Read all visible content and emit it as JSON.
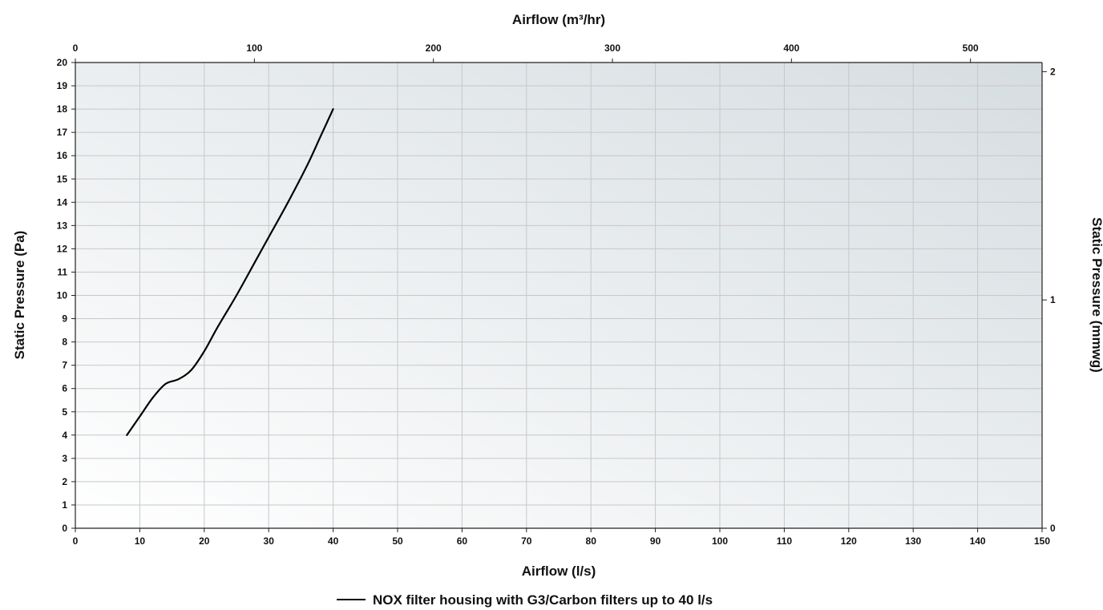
{
  "chart_data": {
    "type": "line",
    "title": "",
    "xlabel": "Airflow (l/s)",
    "ylabel": "Static Pressure (Pa)",
    "x2label": "Airflow (m³/hr)",
    "y2label": "Static Pressure (mmwg)",
    "xlim": [
      0,
      150
    ],
    "ylim": [
      0,
      20
    ],
    "x2lim": [
      0,
      540
    ],
    "y2lim": [
      0,
      2.04
    ],
    "x_ticks": [
      "0",
      "10",
      "20",
      "30",
      "40",
      "50",
      "60",
      "70",
      "80",
      "90",
      "100",
      "110",
      "120",
      "130",
      "140",
      "150"
    ],
    "y_ticks": [
      "0",
      "1",
      "2",
      "3",
      "4",
      "5",
      "6",
      "7",
      "8",
      "9",
      "10",
      "11",
      "12",
      "13",
      "14",
      "15",
      "16",
      "17",
      "18",
      "19",
      "20"
    ],
    "x2_ticks": [
      "0",
      "100",
      "200",
      "300",
      "400",
      "500"
    ],
    "y2_ticks": [
      "0",
      "1",
      "2"
    ],
    "grid": true,
    "legend_position": "bottom",
    "series": [
      {
        "name": "NOX filter housing with G3/Carbon filters up to 40 l/s",
        "color": "#000000",
        "x": [
          8,
          10,
          12,
          14,
          16,
          18,
          20,
          22,
          25,
          28,
          30,
          33,
          36,
          38,
          40
        ],
        "y": [
          4.0,
          4.8,
          5.6,
          6.2,
          6.4,
          6.8,
          7.6,
          8.6,
          10.0,
          11.5,
          12.5,
          14.0,
          15.6,
          16.8,
          18.0
        ]
      }
    ]
  }
}
